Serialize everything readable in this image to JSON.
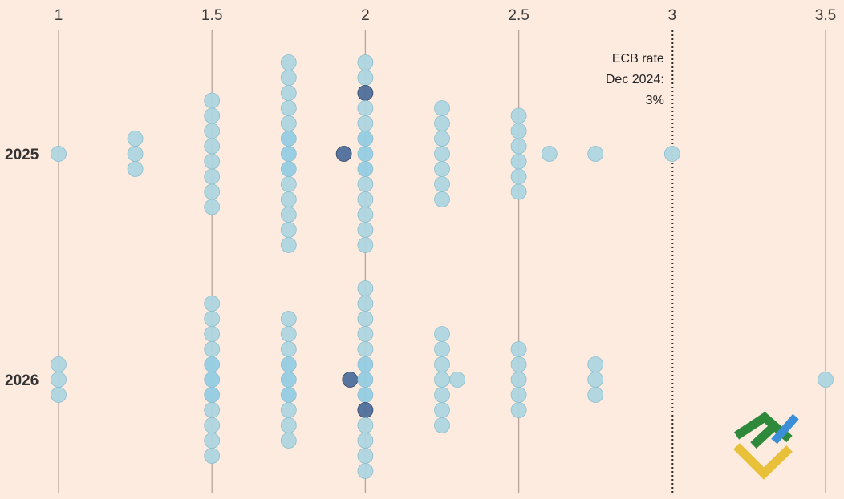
{
  "chart_data": {
    "type": "scatter",
    "title": "",
    "xlabel": "",
    "ylabel": "",
    "xlim": [
      1,
      3.5
    ],
    "x_ticks": [
      "1",
      "1.5",
      "2",
      "2.5",
      "3",
      "3.5"
    ],
    "x_tick_values": [
      1,
      1.5,
      2,
      2.5,
      3,
      3.5
    ],
    "rows": [
      "2025",
      "2026"
    ],
    "reference_line": {
      "value": 3,
      "label_lines": [
        "ECB rate",
        "Dec 2024:",
        "3%"
      ]
    },
    "series": [
      {
        "name": "2025",
        "points": [
          {
            "x": 1,
            "count": 1
          },
          {
            "x": 1.25,
            "count": 3
          },
          {
            "x": 1.5,
            "count": 8
          },
          {
            "x": 1.75,
            "count": 13
          },
          {
            "x": 1.93,
            "count": 1,
            "highlight": true
          },
          {
            "x": 2,
            "count": 13,
            "highlight_index": 2
          },
          {
            "x": 2.25,
            "count": 7
          },
          {
            "x": 2.5,
            "count": 6
          },
          {
            "x": 2.6,
            "count": 1
          },
          {
            "x": 2.75,
            "count": 1
          },
          {
            "x": 3,
            "count": 1
          }
        ]
      },
      {
        "name": "2026",
        "points": [
          {
            "x": 1,
            "count": 3
          },
          {
            "x": 1.5,
            "count": 11
          },
          {
            "x": 1.75,
            "count": 9
          },
          {
            "x": 1.95,
            "count": 1,
            "highlight": true
          },
          {
            "x": 2,
            "count": 13,
            "highlight_index": 8
          },
          {
            "x": 2.25,
            "count": 7
          },
          {
            "x": 2.3,
            "count": 1
          },
          {
            "x": 2.5,
            "count": 5
          },
          {
            "x": 2.75,
            "count": 3
          },
          {
            "x": 3.5,
            "count": 1
          }
        ]
      }
    ]
  },
  "colors": {
    "background": "#fdebdf",
    "dot": "#aed6df",
    "dot_dense": "#95cde3",
    "dot_stroke": "#8cbfd0",
    "dot_highlight": "#4e6f9b",
    "gridline": "#b9a39c",
    "reference_line": "#2b2b2b",
    "logo_green": "#2e8a3a",
    "logo_yellow": "#e8c03a",
    "logo_blue": "#3b8fd9"
  },
  "logo": {
    "icon": "brand-logo-icon"
  }
}
